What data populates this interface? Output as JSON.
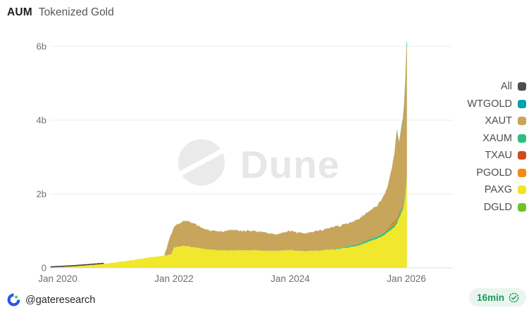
{
  "header": {
    "title_left": "AUM",
    "title_right": "Tokenized Gold"
  },
  "watermark": {
    "text": "Dune"
  },
  "axes": {
    "y_ticks": [
      {
        "label": "6b",
        "value": 6
      },
      {
        "label": "4b",
        "value": 4
      },
      {
        "label": "2b",
        "value": 2
      },
      {
        "label": "0",
        "value": 0
      }
    ],
    "x_ticks": [
      {
        "label": "Jan 2020",
        "month": 0
      },
      {
        "label": "Jan 2022",
        "month": 24
      },
      {
        "label": "Jan 2024",
        "month": 48
      },
      {
        "label": "Jan 2026",
        "month": 72
      }
    ]
  },
  "legend": {
    "items": [
      {
        "key": "all",
        "label": "All",
        "color": "#4d4d4d"
      },
      {
        "key": "wtgold",
        "label": "WTGOLD",
        "color": "#00a1ad"
      },
      {
        "key": "xaut",
        "label": "XAUT",
        "color": "#c8a55b"
      },
      {
        "key": "xaum",
        "label": "XAUM",
        "color": "#2fbe81"
      },
      {
        "key": "txau",
        "label": "TXAU",
        "color": "#cd4a21"
      },
      {
        "key": "pgold",
        "label": "PGOLD",
        "color": "#f18b13"
      },
      {
        "key": "paxg",
        "label": "PAXG",
        "color": "#f0e428"
      },
      {
        "key": "dgld",
        "label": "DGLD",
        "color": "#6fc22a"
      }
    ]
  },
  "footer": {
    "handle": "@gateresearch",
    "badge_text": "16min"
  },
  "chart_data": {
    "type": "area",
    "title": "AUM Tokenized Gold",
    "stacked": true,
    "x_unit": "months since Jan 2020",
    "ylabel": "AUM (billions USD)",
    "ylim": [
      0,
      6.5
    ],
    "grid": "horizontal",
    "legend_position": "right",
    "x_months": [
      -1.5,
      0,
      3,
      6,
      9,
      12,
      15,
      18,
      20,
      22,
      23,
      23.5,
      24,
      25,
      26,
      27,
      28,
      30,
      33,
      36,
      39,
      42,
      45,
      48,
      51,
      54,
      57,
      60,
      62,
      64,
      66,
      67,
      68,
      69,
      69.5,
      70,
      70.5,
      71,
      71.3,
      71.6,
      71.8,
      72,
      72.1
    ],
    "series": [
      {
        "name": "PAXG",
        "key": "paxg",
        "color": "#f1e72c",
        "values": [
          0.01,
          0.02,
          0.04,
          0.07,
          0.1,
          0.15,
          0.2,
          0.26,
          0.3,
          0.33,
          0.35,
          0.38,
          0.55,
          0.58,
          0.6,
          0.58,
          0.56,
          0.52,
          0.48,
          0.47,
          0.48,
          0.47,
          0.46,
          0.48,
          0.45,
          0.47,
          0.5,
          0.55,
          0.6,
          0.7,
          0.8,
          0.85,
          0.95,
          1.05,
          1.1,
          1.2,
          1.35,
          1.5,
          1.6,
          1.8,
          2.0,
          2.3,
          2.45
        ]
      },
      {
        "name": "XAUM",
        "key": "xaum",
        "color": "#2fbe81",
        "values": [
          0,
          0,
          0,
          0,
          0,
          0,
          0,
          0,
          0,
          0,
          0,
          0,
          0,
          0,
          0,
          0,
          0,
          0,
          0,
          0,
          0,
          0,
          0,
          0,
          0,
          0,
          0.01,
          0.03,
          0.04,
          0.05,
          0.05,
          0.06,
          0.06,
          0.07,
          0.07,
          0.07,
          0.08,
          0.08,
          0.09,
          0.09,
          0.1,
          0.1,
          0.1
        ]
      },
      {
        "name": "PGOLD",
        "key": "pgold",
        "color": "#f18b13",
        "values": [
          0,
          0,
          0,
          0,
          0,
          0,
          0,
          0,
          0,
          0,
          0,
          0,
          0,
          0,
          0,
          0,
          0,
          0,
          0,
          0,
          0,
          0,
          0,
          0,
          0,
          0,
          0,
          0,
          0,
          0,
          0,
          0.01,
          0.03,
          0.06,
          0.07,
          0.05,
          0.04,
          0.03,
          0.03,
          0.03,
          0.03,
          0.03,
          0.03
        ]
      },
      {
        "name": "TXAU",
        "key": "txau",
        "color": "#cd4a21",
        "values": [
          0,
          0,
          0,
          0,
          0,
          0,
          0,
          0,
          0,
          0,
          0,
          0,
          0,
          0,
          0,
          0,
          0,
          0,
          0,
          0,
          0,
          0,
          0,
          0,
          0,
          0,
          0,
          0,
          0,
          0,
          0,
          0,
          0.01,
          0.02,
          0.02,
          0.02,
          0.02,
          0.02,
          0.02,
          0.02,
          0.02,
          0.02,
          0.02
        ]
      },
      {
        "name": "XAUT",
        "key": "xaut",
        "color": "#c7a55a",
        "values": [
          0,
          0,
          0,
          0,
          0,
          0,
          0,
          0,
          0,
          0,
          0.4,
          0.55,
          0.55,
          0.62,
          0.68,
          0.7,
          0.65,
          0.55,
          0.5,
          0.55,
          0.52,
          0.5,
          0.44,
          0.52,
          0.48,
          0.55,
          0.6,
          0.62,
          0.68,
          0.75,
          0.85,
          0.95,
          1.1,
          1.5,
          1.8,
          2.4,
          1.9,
          2.2,
          2.3,
          2.6,
          3.0,
          3.55,
          3.45
        ]
      },
      {
        "name": "WTGOLD",
        "key": "wtgold",
        "color": "#00a1ad",
        "values": [
          0,
          0,
          0,
          0,
          0,
          0,
          0,
          0,
          0,
          0,
          0,
          0,
          0,
          0,
          0,
          0,
          0,
          0,
          0,
          0,
          0,
          0,
          0,
          0,
          0,
          0,
          0,
          0,
          0,
          0,
          0,
          0,
          0,
          0,
          0.02,
          0.02,
          0.02,
          0.03,
          0.04,
          0.05,
          0.06,
          0.08,
          0.12
        ]
      },
      {
        "name": "DGLD",
        "key": "dgld",
        "color": "#6fc22a",
        "values": [
          0,
          0,
          0,
          0,
          0,
          0,
          0,
          0,
          0,
          0,
          0,
          0,
          0,
          0,
          0,
          0,
          0,
          0,
          0,
          0,
          0,
          0,
          0,
          0,
          0,
          0,
          0,
          0,
          0,
          0,
          0,
          0,
          0,
          0,
          0,
          0,
          0,
          0,
          0,
          0,
          0,
          0,
          0
        ]
      }
    ],
    "all_line": {
      "name": "All",
      "color": "#3d3d3d",
      "visible_until_month": 9.5
    },
    "noise": {
      "paxg": 0.03,
      "xaut": 0.07
    }
  }
}
